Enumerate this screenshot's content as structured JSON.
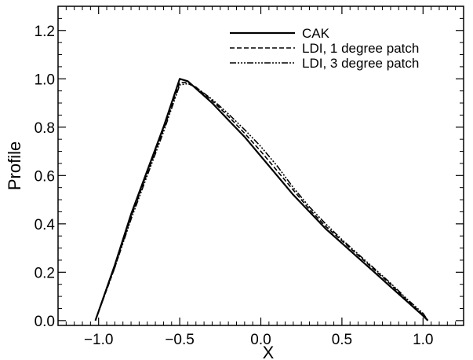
{
  "chart_data": {
    "type": "line",
    "title": "",
    "xlabel": "X",
    "ylabel": "Profile",
    "xlim": [
      -1.25,
      1.25
    ],
    "ylim": [
      -0.02,
      1.3
    ],
    "xticks": [
      -1.0,
      -0.5,
      0.0,
      0.5,
      1.0
    ],
    "xtick_labels": [
      "−1.0",
      "−0.5",
      "0.0",
      "0.5",
      "1.0"
    ],
    "yticks": [
      0.0,
      0.2,
      0.4,
      0.6,
      0.8,
      1.0,
      1.2
    ],
    "ytick_labels": [
      "0.0",
      "0.2",
      "0.4",
      "0.6",
      "0.8",
      "1.0",
      "1.2"
    ],
    "grid": false,
    "legend_position": "top-right",
    "series": [
      {
        "name": "CAK",
        "line_style": "solid",
        "x": [
          -1.02,
          -0.9,
          -0.8,
          -0.7,
          -0.6,
          -0.5,
          -0.45,
          -0.4,
          -0.3,
          -0.2,
          -0.1,
          0.0,
          0.1,
          0.2,
          0.3,
          0.4,
          0.5,
          0.6,
          0.7,
          0.8,
          0.9,
          1.0,
          1.03
        ],
        "y": [
          0.0,
          0.23,
          0.44,
          0.62,
          0.8,
          1.0,
          0.99,
          0.96,
          0.9,
          0.83,
          0.76,
          0.68,
          0.6,
          0.52,
          0.45,
          0.38,
          0.32,
          0.26,
          0.2,
          0.14,
          0.08,
          0.02,
          0.0
        ]
      },
      {
        "name": "LDI, 1 degree patch",
        "line_style": "dashed",
        "x": [
          -1.02,
          -0.9,
          -0.8,
          -0.7,
          -0.6,
          -0.5,
          -0.45,
          -0.4,
          -0.3,
          -0.2,
          -0.1,
          0.0,
          0.1,
          0.2,
          0.3,
          0.4,
          0.5,
          0.6,
          0.7,
          0.8,
          0.9,
          1.0,
          1.03
        ],
        "y": [
          0.0,
          0.22,
          0.43,
          0.61,
          0.79,
          0.985,
          0.985,
          0.965,
          0.91,
          0.845,
          0.775,
          0.7,
          0.62,
          0.54,
          0.46,
          0.39,
          0.33,
          0.27,
          0.21,
          0.15,
          0.085,
          0.025,
          0.0
        ]
      },
      {
        "name": "LDI, 3 degree patch",
        "line_style": "dash-dot",
        "x": [
          -1.02,
          -0.9,
          -0.8,
          -0.7,
          -0.6,
          -0.5,
          -0.45,
          -0.4,
          -0.3,
          -0.2,
          -0.1,
          0.0,
          0.1,
          0.2,
          0.3,
          0.4,
          0.5,
          0.6,
          0.7,
          0.8,
          0.9,
          1.0,
          1.03
        ],
        "y": [
          0.0,
          0.22,
          0.42,
          0.6,
          0.78,
          0.975,
          0.98,
          0.965,
          0.915,
          0.855,
          0.79,
          0.72,
          0.64,
          0.55,
          0.47,
          0.4,
          0.335,
          0.275,
          0.215,
          0.155,
          0.09,
          0.03,
          0.0
        ]
      }
    ]
  }
}
